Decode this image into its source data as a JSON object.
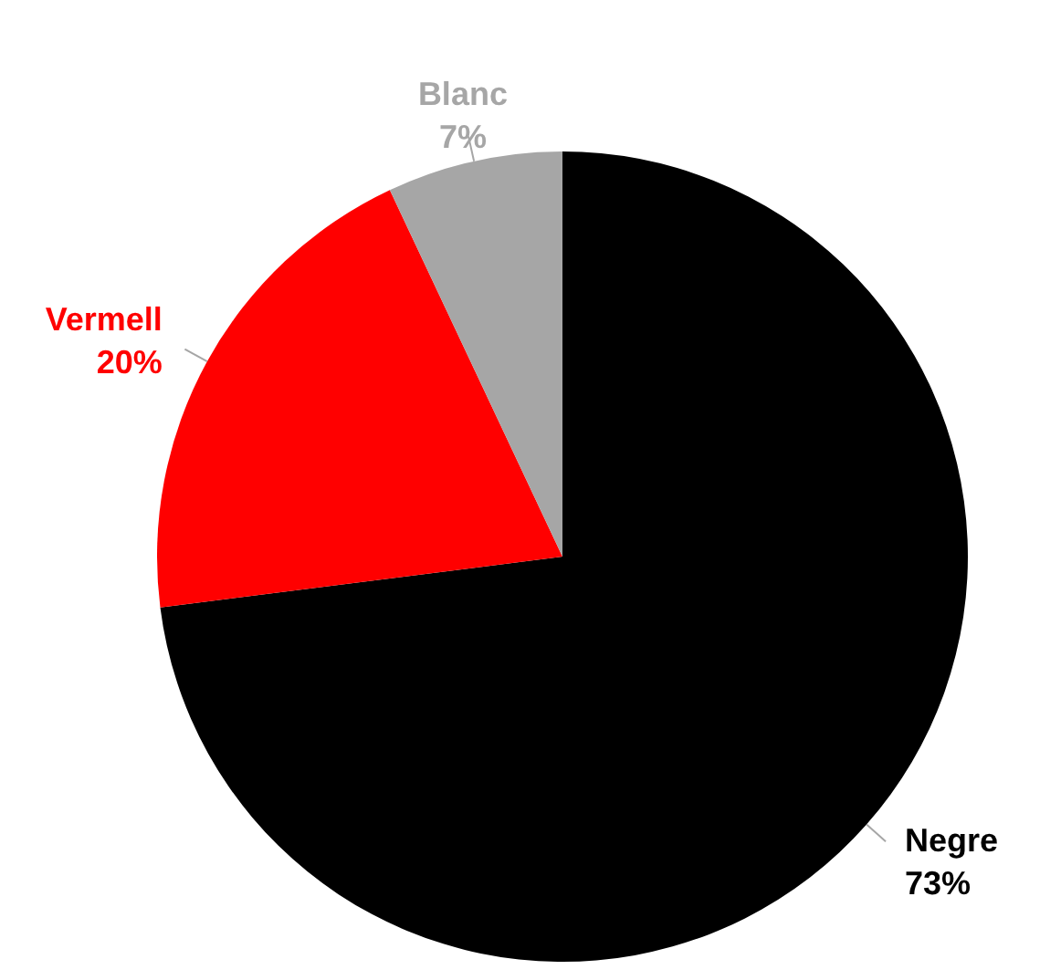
{
  "chart_data": {
    "type": "pie",
    "categories": [
      "Negre",
      "Vermell",
      "Blanc"
    ],
    "values": [
      73,
      20,
      7
    ],
    "value_labels": [
      "73%",
      "20%",
      "7%"
    ],
    "colors": [
      "#000000",
      "#ff0000",
      "#a6a6a6"
    ],
    "legend": false
  }
}
